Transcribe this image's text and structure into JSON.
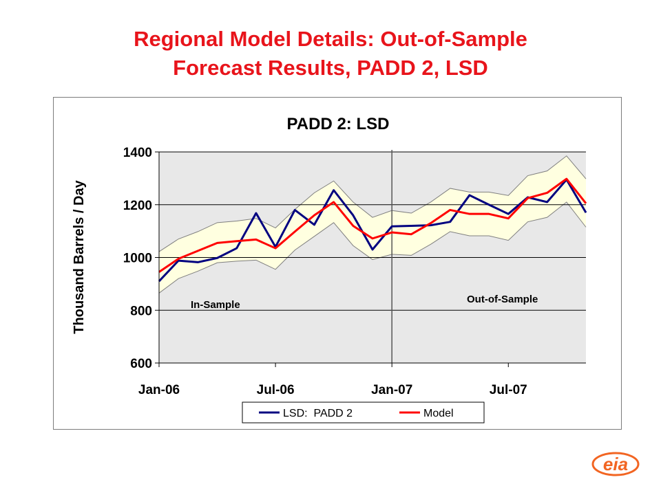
{
  "slide": {
    "title_line1": "Regional Model Details:  Out-of-Sample",
    "title_line2": "Forecast Results, PADD 2, LSD",
    "logo_text": "eia"
  },
  "colors": {
    "title": "#e8141b",
    "actual_series": "#000080",
    "model_series": "#ff0000",
    "band_fill": "#ffffe0",
    "plot_bg": "#e8e8e8",
    "logo": "#f26522"
  },
  "chart_data": {
    "type": "line",
    "title": "PADD 2:  LSD",
    "xlabel": "",
    "ylabel": "Thousand Barrels / Day",
    "ylim": [
      600,
      1400
    ],
    "yticks": [
      600,
      800,
      1000,
      1200,
      1400
    ],
    "x_tick_labels": [
      "Jan-06",
      "Jul-06",
      "Jan-07",
      "Jul-07"
    ],
    "x_tick_indices": [
      0,
      6,
      12,
      18
    ],
    "x": [
      "Jan-06",
      "Feb-06",
      "Mar-06",
      "Apr-06",
      "May-06",
      "Jun-06",
      "Jul-06",
      "Aug-06",
      "Sep-06",
      "Oct-06",
      "Nov-06",
      "Dec-06",
      "Jan-07",
      "Feb-07",
      "Mar-07",
      "Apr-07",
      "May-07",
      "Jun-07",
      "Jul-07",
      "Aug-07",
      "Sep-07",
      "Oct-07",
      "Nov-07"
    ],
    "grid": "horizontal",
    "legend_position": "bottom",
    "series": [
      {
        "name": "LSD:  PADD 2",
        "values": [
          910,
          988,
          982,
          998,
          1035,
          1168,
          1040,
          1180,
          1124,
          1255,
          1160,
          1030,
          1118,
          1120,
          1122,
          1135,
          1236,
          1200,
          1165,
          1228,
          1210,
          1295,
          1170
        ]
      },
      {
        "name": "Model",
        "values": [
          945,
          995,
          1025,
          1055,
          1062,
          1068,
          1035,
          1098,
          1160,
          1210,
          1120,
          1072,
          1095,
          1088,
          1130,
          1180,
          1165,
          1165,
          1148,
          1225,
          1245,
          1298,
          1205
        ]
      }
    ],
    "band": {
      "upper": [
        1022,
        1070,
        1098,
        1132,
        1138,
        1148,
        1112,
        1182,
        1245,
        1290,
        1210,
        1152,
        1178,
        1168,
        1210,
        1262,
        1248,
        1248,
        1235,
        1310,
        1328,
        1385,
        1298
      ],
      "lower": [
        865,
        920,
        948,
        980,
        986,
        990,
        955,
        1028,
        1080,
        1132,
        1045,
        992,
        1012,
        1008,
        1050,
        1098,
        1082,
        1082,
        1065,
        1135,
        1152,
        1210,
        1115
      ]
    },
    "divider_index": 12,
    "annotations": [
      "In-Sample",
      "Out-of-Sample"
    ]
  }
}
